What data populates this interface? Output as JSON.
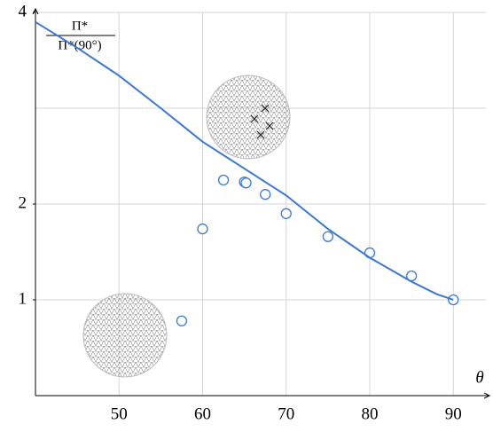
{
  "chart_data": {
    "type": "scatter",
    "y_label_numerator": "Π*",
    "y_label_denominator": "Π*(90°)",
    "x_label": "θ",
    "xlim": [
      40,
      93.9
    ],
    "ylim": [
      0,
      4
    ],
    "xticks": [
      50,
      60,
      70,
      80,
      90
    ],
    "yticks": [
      1,
      2,
      4
    ],
    "y_grid": [
      1,
      2,
      3,
      4
    ],
    "grid": true,
    "series": [
      {
        "kind": "markers",
        "color": "#3a78d4",
        "x": [
          57.5,
          60,
          62.5,
          65,
          65.2,
          67.5,
          70,
          75,
          80,
          85,
          90
        ],
        "values": [
          0.78,
          1.74,
          2.25,
          2.23,
          2.22,
          2.1,
          1.9,
          1.66,
          1.49,
          1.25,
          1.0
        ]
      },
      {
        "kind": "line",
        "color": "#3a78d4",
        "x": [
          40,
          45,
          50,
          55,
          60,
          65,
          70,
          75,
          80,
          85,
          88,
          90
        ],
        "values": [
          3.9,
          3.63,
          3.34,
          3.0,
          2.65,
          2.37,
          2.09,
          1.74,
          1.44,
          1.19,
          1.06,
          1.0
        ]
      }
    ]
  }
}
